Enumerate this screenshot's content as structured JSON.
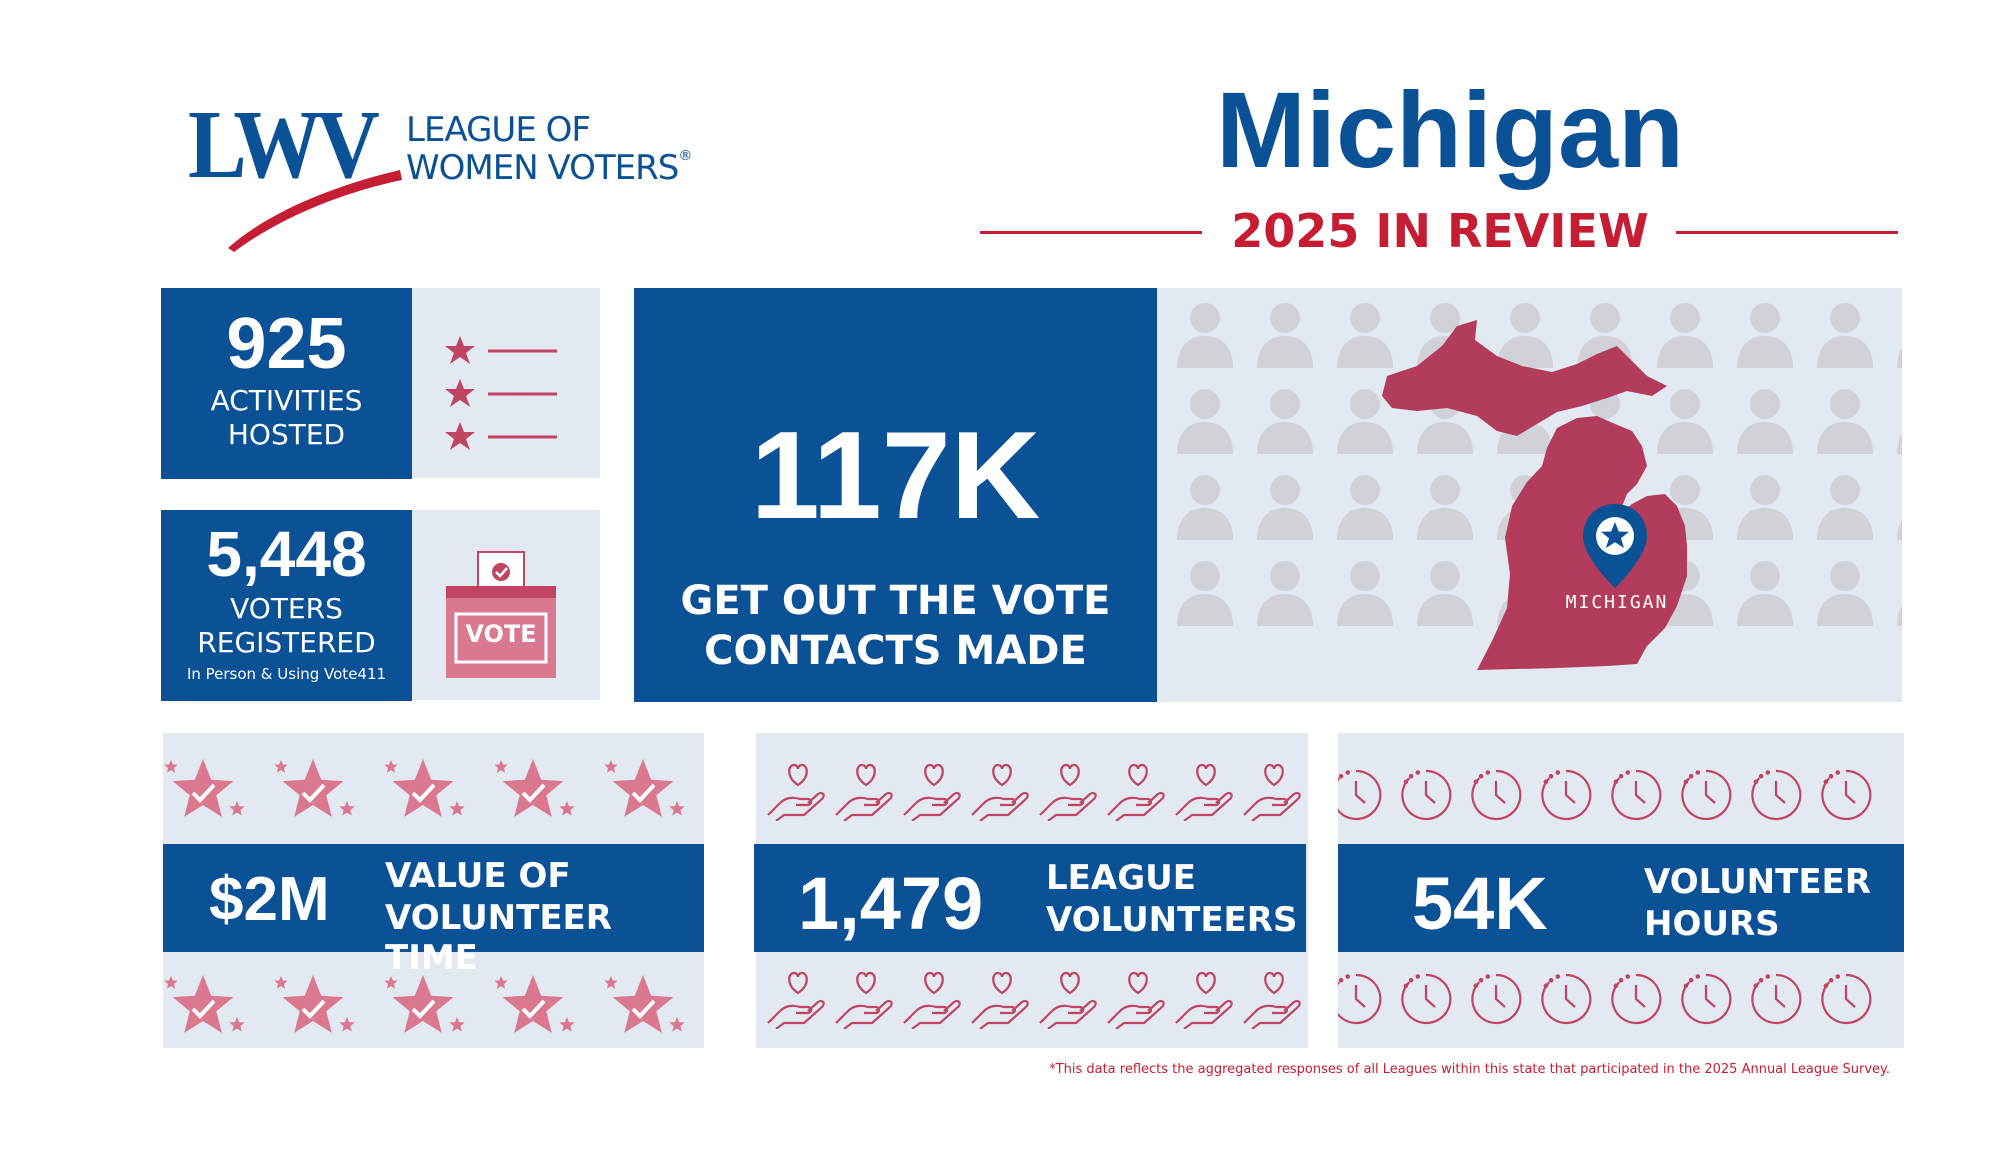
{
  "header": {
    "logo_mark": "LWV",
    "logo_line1": "LEAGUE OF",
    "logo_line2": "WOMEN VOTERS",
    "logo_reg": "®",
    "state_title": "Michigan",
    "subtitle": "2025 IN REVIEW"
  },
  "activities": {
    "value": "925",
    "label_line1": "ACTIVITIES",
    "label_line2": "HOSTED"
  },
  "voters": {
    "value": "5,448",
    "label_line1": "VOTERS",
    "label_line2": "REGISTERED",
    "note": "In Person & Using Vote411",
    "ballot_box_text": "VOTE"
  },
  "gotv": {
    "value": "117K",
    "label_line1": "GET OUT THE VOTE",
    "label_line2": "CONTACTS MADE"
  },
  "map": {
    "state_label": "MICHIGAN"
  },
  "value_time": {
    "value": "$2M",
    "label_line1": "VALUE OF",
    "label_line2": "VOLUNTEER TIME"
  },
  "league_volunteers": {
    "value": "1,479",
    "label_line1": "LEAGUE",
    "label_line2": "VOLUNTEERS"
  },
  "volunteer_hours": {
    "value": "54K",
    "label_line1": "VOLUNTEER",
    "label_line2": "HOURS"
  },
  "footnote": "*This data reflects the aggregated responses of all Leagues within this state that participated in the 2025 Annual League Survey.",
  "colors": {
    "blue": "#0a5196",
    "red": "#c51d34",
    "pink": "#c14462",
    "pale": "#e2e9f1"
  }
}
